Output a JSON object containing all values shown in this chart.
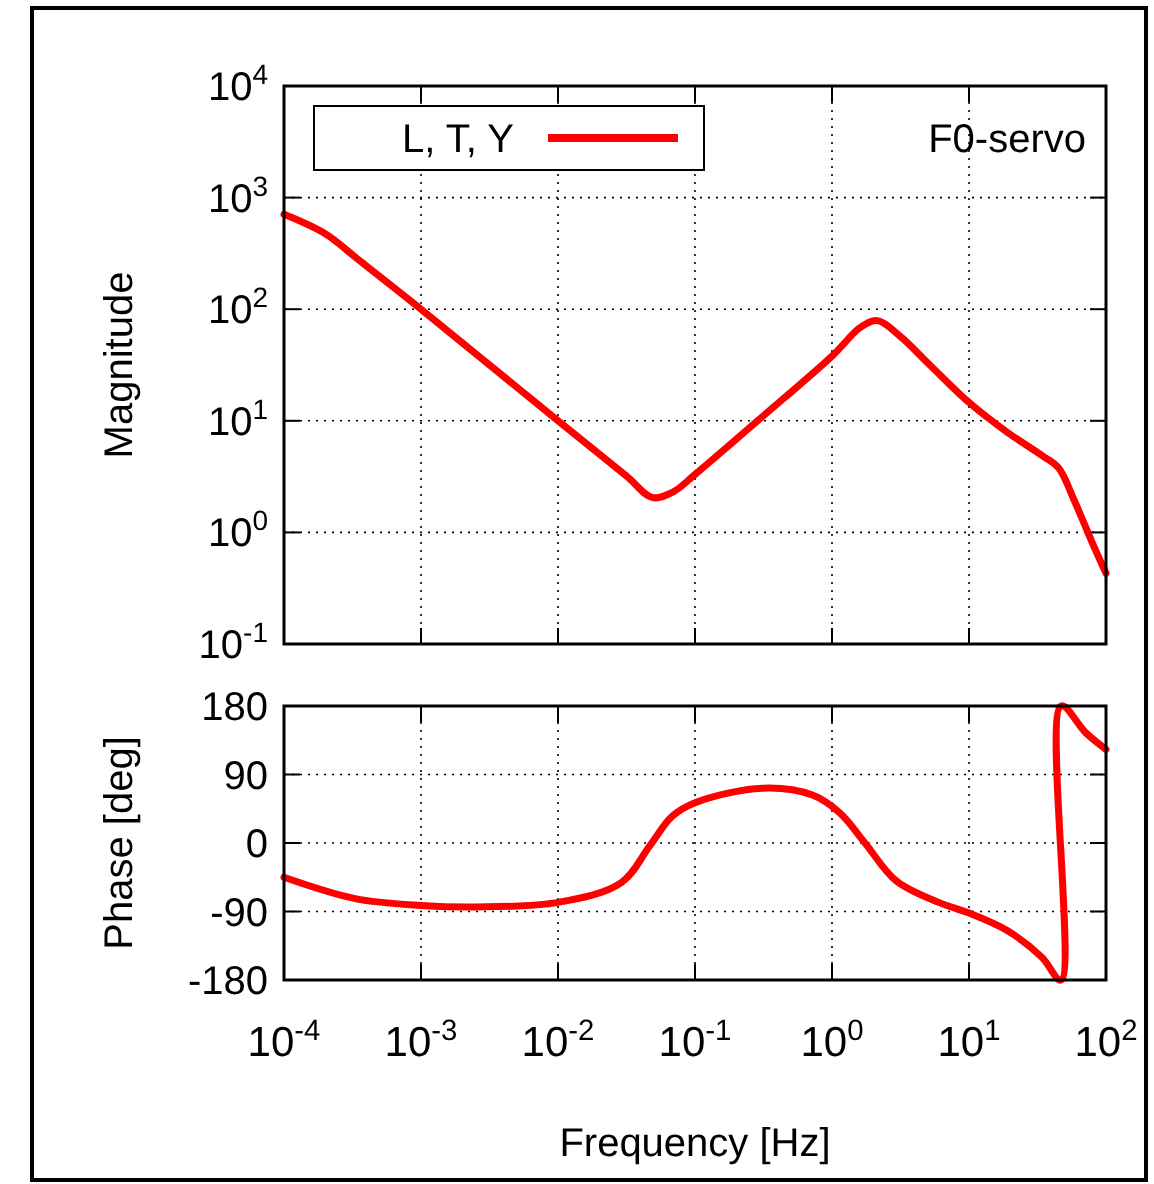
{
  "chart_data": [
    {
      "type": "line",
      "ylabel": "Magnitude",
      "log": "xy",
      "grid": true,
      "legend": "top left",
      "tick_labels": "y",
      "annotations": [
        "F0-servo"
      ],
      "xlim": [
        0.0001,
        100
      ],
      "xticks": [
        {
          "value": 0.0001,
          "label": null
        },
        {
          "value": 0.001,
          "label": null
        },
        {
          "value": 0.01,
          "label": null
        },
        {
          "value": 0.1,
          "label": null
        },
        {
          "value": 1,
          "label": null
        },
        {
          "value": 10,
          "label": null
        },
        {
          "value": 100,
          "label": null
        }
      ],
      "ylim": [
        0.1,
        10000
      ],
      "yticks": [
        {
          "value": 0.1,
          "label": "10$^{-1}$"
        },
        {
          "value": 1,
          "label": "10$^{0}$"
        },
        {
          "value": 10,
          "label": "10$^{1}$"
        },
        {
          "value": 100,
          "label": "10$^{2}$"
        },
        {
          "value": 1000,
          "label": "10$^{3}$"
        },
        {
          "value": 10000,
          "label": "10$^{4}$"
        }
      ],
      "series": [
        {
          "name": "L, T, Y",
          "color": "#ff0000",
          "x": [
            0.0001,
            0.0002,
            0.00035,
            0.001,
            0.01,
            0.0316,
            0.049,
            0.069,
            0.1,
            0.3,
            1,
            1.62,
            2.14,
            3.16,
            5,
            10,
            19,
            34,
            45,
            59,
            78,
            100
          ],
          "values": [
            708,
            474,
            277,
            100,
            10,
            3.2,
            2.05,
            2.3,
            3.3,
            10.5,
            38,
            69,
            79,
            57,
            33,
            14.6,
            7.9,
            4.9,
            3.8,
            1.9,
            0.85,
            0.43
          ]
        }
      ]
    },
    {
      "type": "line",
      "xlabel": "Frequency [Hz]",
      "ylabel": "Phase [deg]",
      "log": "x",
      "grid": true,
      "xlim": [
        0.0001,
        100
      ],
      "xticks": [
        {
          "value": 0.0001,
          "label": "10$^{-4}$"
        },
        {
          "value": 0.001,
          "label": "10$^{-3}$"
        },
        {
          "value": 0.01,
          "label": "10$^{-2}$"
        },
        {
          "value": 0.1,
          "label": "10$^{-1}$"
        },
        {
          "value": 1,
          "label": "10$^{0}$"
        },
        {
          "value": 10,
          "label": "10$^{1}$"
        },
        {
          "value": 100,
          "label": "10$^{2}$"
        }
      ],
      "ylim": [
        -180,
        180
      ],
      "yticks": [
        -180,
        -90,
        0,
        90,
        180
      ],
      "series": [
        {
          "color": "#ff0000",
          "x": [
            0.0001,
            0.00033,
            0.001,
            0.0025,
            0.01,
            0.029,
            0.047,
            0.068,
            0.1,
            0.31,
            0.72,
            1.15,
            1.74,
            2.95,
            6,
            10,
            19,
            34,
            47,
            47,
            71,
            100
          ],
          "values": [
            -45,
            -73,
            -82,
            -84,
            -78,
            -52,
            -3,
            35,
            53,
            72,
            63,
            39,
            0,
            -50,
            -78,
            -92,
            -115,
            -150,
            -180,
            180,
            145,
            123
          ]
        }
      ]
    }
  ]
}
